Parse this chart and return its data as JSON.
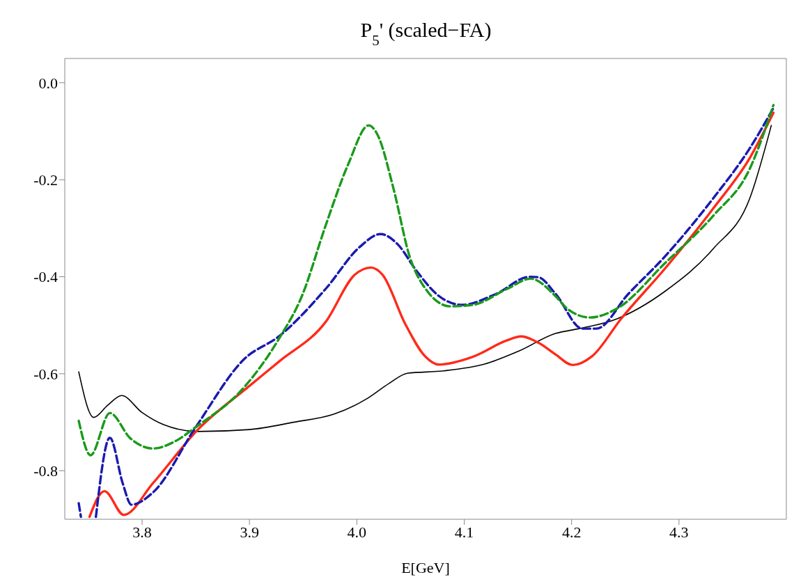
{
  "chart_data": {
    "type": "line",
    "title": "P$_{5}$' (scaled−FA)",
    "xlabel": "E[GeV]",
    "xlim": [
      3.728,
      4.4
    ],
    "xticks": [
      3.8,
      3.9,
      {
        "value": 4.0,
        "label": "4.0"
      },
      4.1,
      4.2,
      4.3
    ],
    "ylim": [
      -0.9,
      0.05
    ],
    "yticks": [
      -0.8,
      -0.6,
      -0.4,
      -0.2,
      {
        "value": 0,
        "label": "0.0"
      }
    ],
    "grid": false,
    "marker": "none",
    "series": [
      {
        "color": "#000000",
        "line_style": "solid",
        "x": [
          3.741,
          3.755,
          3.768,
          3.781,
          3.8,
          3.82,
          3.852,
          3.9,
          3.941,
          3.979,
          4.009,
          4.03,
          4.047,
          4.081,
          4.119,
          4.151,
          4.185,
          4.207,
          4.242,
          4.287,
          4.332,
          4.366,
          4.386
        ],
        "values": [
          -0.596,
          -0.69,
          -0.665,
          -0.645,
          -0.68,
          -0.705,
          -0.719,
          -0.715,
          -0.7,
          -0.683,
          -0.652,
          -0.62,
          -0.599,
          -0.594,
          -0.58,
          -0.553,
          -0.517,
          -0.507,
          -0.487,
          -0.43,
          -0.342,
          -0.238,
          -0.088
        ]
      },
      {
        "color": "#ff2a1a",
        "line_style": "solid",
        "x": [
          3.751,
          3.765,
          3.783,
          3.81,
          3.852,
          3.9,
          3.928,
          3.971,
          3.998,
          4.013,
          4.024,
          4.045,
          4.064,
          4.076,
          4.108,
          4.14,
          4.153,
          4.169,
          4.185,
          4.201,
          4.219,
          4.246,
          4.287,
          4.332,
          4.366,
          4.388
        ],
        "values": [
          -0.895,
          -0.842,
          -0.891,
          -0.826,
          -0.715,
          -0.625,
          -0.574,
          -0.493,
          -0.396,
          -0.381,
          -0.396,
          -0.497,
          -0.565,
          -0.581,
          -0.565,
          -0.531,
          -0.523,
          -0.536,
          -0.56,
          -0.582,
          -0.564,
          -0.487,
          -0.383,
          -0.259,
          -0.155,
          -0.062
        ]
      },
      {
        "color": "#1a1ab0",
        "line_style": "dashed",
        "x": [
          3.741,
          3.743,
          3.75,
          3.757,
          3.77,
          3.782,
          3.79,
          3.81,
          3.85,
          3.895,
          3.928,
          3.971,
          4.003,
          4.022,
          4.038,
          4.055,
          4.076,
          4.098,
          4.13,
          4.161,
          4.169,
          4.185,
          4.21,
          4.223,
          4.253,
          4.287,
          4.332,
          4.366,
          4.388
        ],
        "values": [
          -0.867,
          -0.895,
          null,
          -0.895,
          -0.732,
          -0.826,
          -0.87,
          -0.845,
          -0.71,
          -0.57,
          -0.522,
          -0.425,
          -0.338,
          -0.312,
          -0.333,
          -0.386,
          -0.439,
          -0.458,
          -0.435,
          -0.4,
          -0.401,
          -0.435,
          -0.507,
          -0.507,
          -0.435,
          -0.358,
          -0.238,
          -0.135,
          -0.052
        ]
      },
      {
        "color": "#1a9a1a",
        "line_style": "dashed",
        "x": [
          3.741,
          3.752,
          3.77,
          3.789,
          3.81,
          3.831,
          3.85,
          3.895,
          3.928,
          3.949,
          3.971,
          3.992,
          4.011,
          4.019,
          4.034,
          4.049,
          4.064,
          4.087,
          4.108,
          4.14,
          4.162,
          4.185,
          4.196,
          4.217,
          4.242,
          4.287,
          4.332,
          4.366,
          4.388
        ],
        "values": [
          -0.697,
          -0.768,
          -0.681,
          -0.733,
          -0.754,
          -0.739,
          -0.71,
          -0.628,
          -0.526,
          -0.439,
          -0.294,
          -0.168,
          -0.088,
          -0.106,
          -0.217,
          -0.357,
          -0.425,
          -0.461,
          -0.458,
          -0.425,
          -0.404,
          -0.44,
          -0.466,
          -0.484,
          -0.466,
          -0.372,
          -0.274,
          -0.177,
          -0.046
        ]
      }
    ]
  }
}
